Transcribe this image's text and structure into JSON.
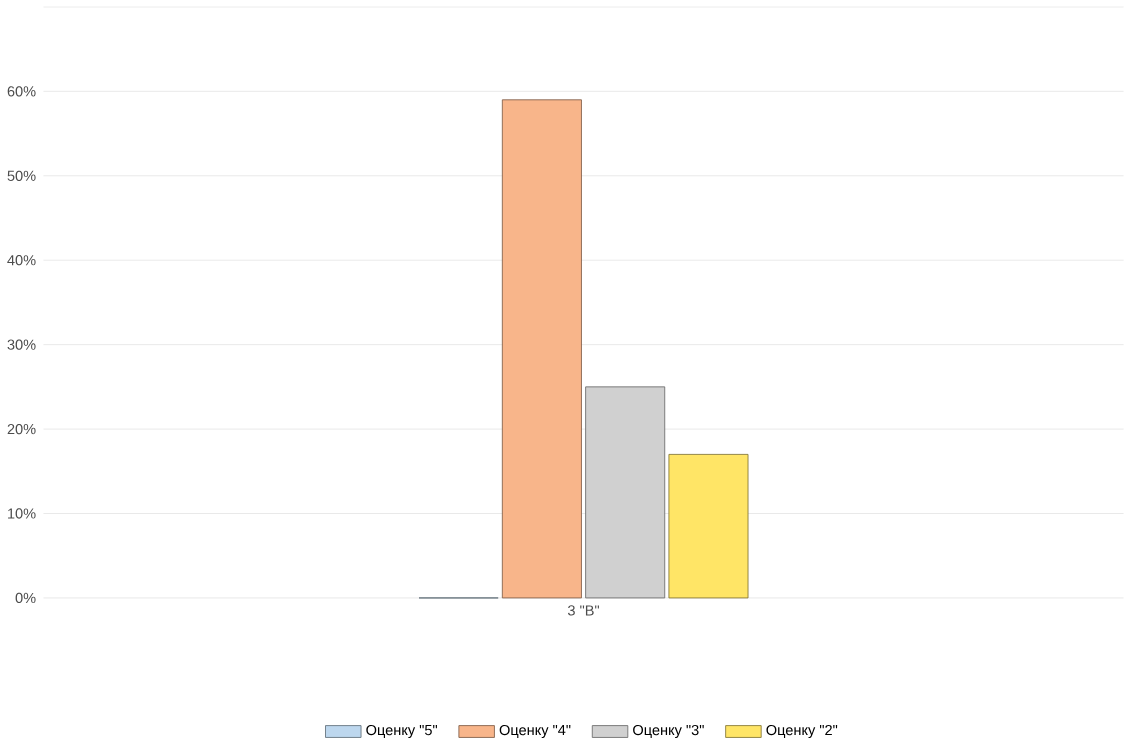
{
  "chart_data": {
    "type": "bar",
    "categories": [
      "3 \"В\""
    ],
    "series": [
      {
        "name": "Оценку \"5\"",
        "color": "#bdd7ee",
        "values": [
          0
        ]
      },
      {
        "name": "Оценку \"4\"",
        "color": "#f8b58a",
        "values": [
          59
        ]
      },
      {
        "name": "Оценку \"3\"",
        "color": "#d0d0d0",
        "values": [
          25
        ]
      },
      {
        "name": "Оценку \"2\"",
        "color": "#ffe566",
        "values": [
          17
        ]
      }
    ],
    "ylim": [
      0,
      70
    ],
    "yticks": [
      {
        "value": 0,
        "label": "0%"
      },
      {
        "value": 10,
        "label": "10%"
      },
      {
        "value": 20,
        "label": "20%"
      },
      {
        "value": 30,
        "label": "30%"
      },
      {
        "value": 40,
        "label": "40%"
      },
      {
        "value": 50,
        "label": "50%"
      },
      {
        "value": 60,
        "label": "60%"
      },
      {
        "value": 70,
        "label": null
      }
    ],
    "grid": "y",
    "legend": "bottom"
  }
}
